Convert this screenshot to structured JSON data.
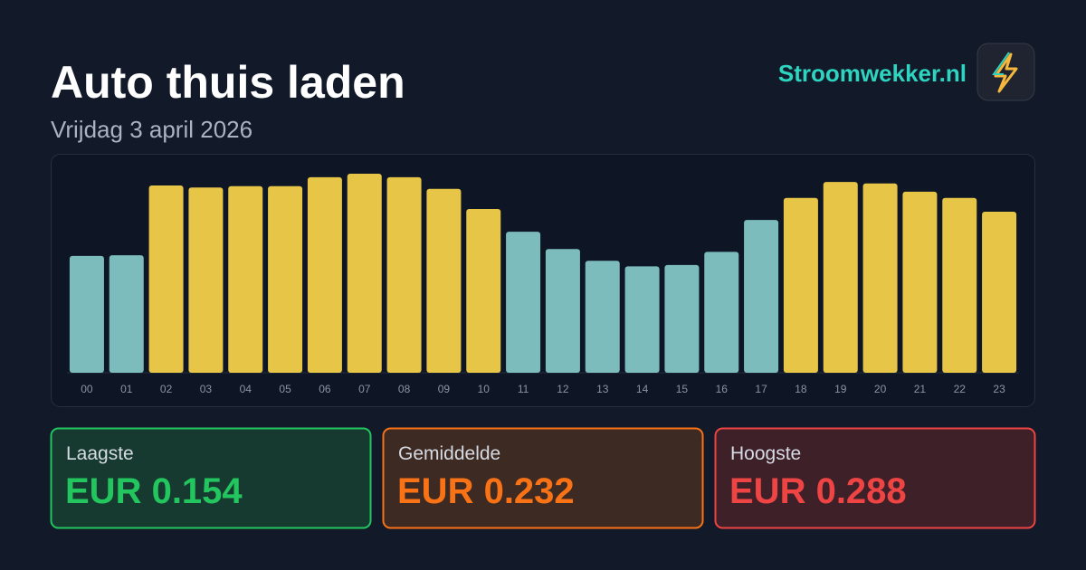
{
  "brand": "Stroomwekker.nl",
  "chart_data": {
    "type": "bar",
    "title": "Auto thuis laden",
    "subtitle": "Vrijdag 3 april 2026",
    "categories": [
      "00",
      "01",
      "02",
      "03",
      "04",
      "05",
      "06",
      "07",
      "08",
      "09",
      "10",
      "11",
      "12",
      "13",
      "14",
      "15",
      "16",
      "17",
      "18",
      "19",
      "20",
      "21",
      "22",
      "23"
    ],
    "values": [
      0.169,
      0.17,
      0.271,
      0.268,
      0.27,
      0.27,
      0.283,
      0.288,
      0.283,
      0.266,
      0.237,
      0.204,
      0.179,
      0.162,
      0.154,
      0.156,
      0.175,
      0.221,
      0.253,
      0.276,
      0.274,
      0.262,
      0.253,
      0.233
    ],
    "colors": [
      "#7cbcbc",
      "#7cbcbc",
      "#e6c547",
      "#e6c547",
      "#e6c547",
      "#e6c547",
      "#e6c547",
      "#e6c547",
      "#e6c547",
      "#e6c547",
      "#e6c547",
      "#7cbcbc",
      "#7cbcbc",
      "#7cbcbc",
      "#7cbcbc",
      "#7cbcbc",
      "#7cbcbc",
      "#7cbcbc",
      "#e6c547",
      "#e6c547",
      "#e6c547",
      "#e6c547",
      "#e6c547",
      "#e6c547"
    ]
  },
  "stats": [
    {
      "label": "Laagste",
      "value_label": "EUR 0.154",
      "color": "#22c55e"
    },
    {
      "label": "Gemiddelde",
      "value_label": "EUR 0.232",
      "color": "#f97316"
    },
    {
      "label": "Hoogste",
      "value_label": "EUR 0.288",
      "color": "#ef4444"
    }
  ]
}
